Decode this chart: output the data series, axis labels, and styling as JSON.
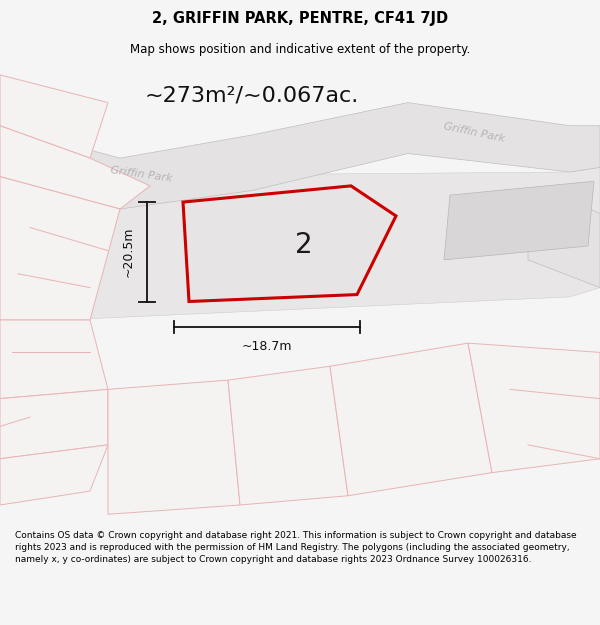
{
  "title": "2, GRIFFIN PARK, PENTRE, CF41 7JD",
  "subtitle": "Map shows position and indicative extent of the property.",
  "area_text": "~273m²/~0.067ac.",
  "width_label": "~18.7m",
  "height_label": "~20.5m",
  "property_number": "2",
  "street_label_left": "Griffin Park",
  "street_label_right": "Griffin Park",
  "footer": "Contains OS data © Crown copyright and database right 2021. This information is subject to Crown copyright and database rights 2023 and is reproduced with the permission of HM Land Registry. The polygons (including the associated geometry, namely x, y co-ordinates) are subject to Crown copyright and database rights 2023 Ordnance Survey 100026316.",
  "bg_color": "#f5f5f5",
  "map_bg": "#ffffff",
  "property_fill": "#e6e4e4",
  "property_edge": "#cc0000",
  "property_edge_width": 2.2,
  "road_fill": "#e4e2e2",
  "road_edge": "#c0bebe",
  "parcel_edge_pink": "#e8b4b4",
  "parcel_fill_light": "#f5f2f2",
  "building_fill": "#d8d6d6",
  "title_fontsize": 10.5,
  "subtitle_fontsize": 8.5,
  "area_fontsize": 16,
  "label_fontsize": 8,
  "dim_fontsize": 9,
  "number_fontsize": 20,
  "footer_fontsize": 6.5
}
